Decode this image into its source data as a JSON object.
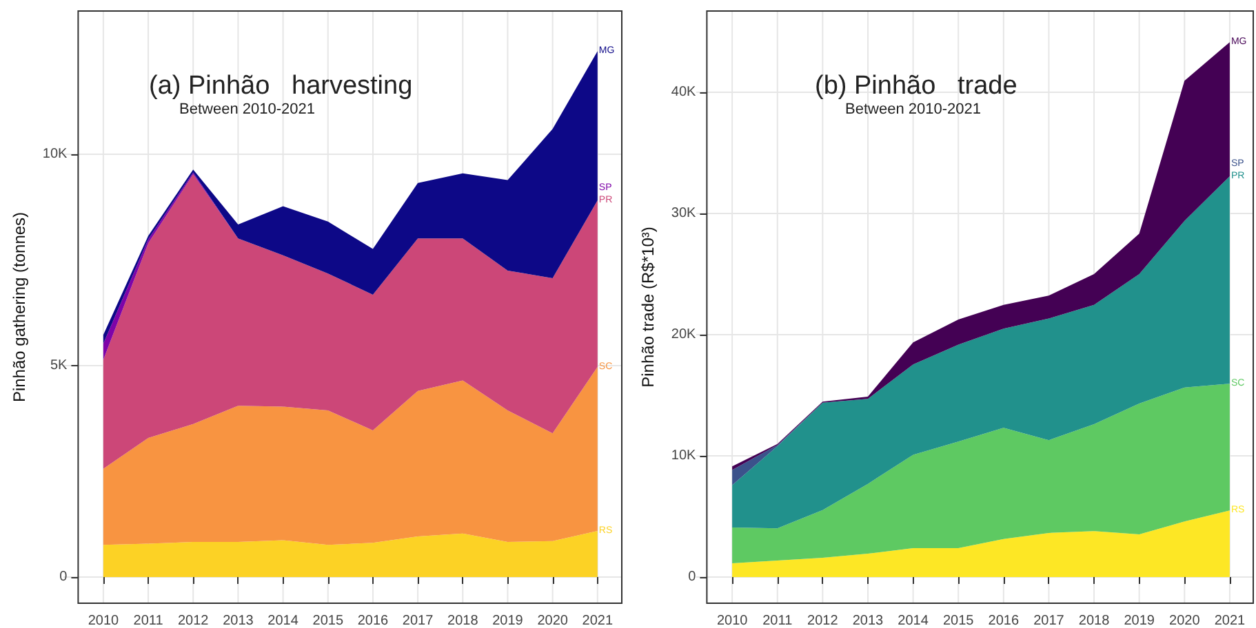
{
  "chart_data": [
    {
      "type": "area",
      "title": "(a) Pinhão   harvesting",
      "subtitle": "Between 2010-2021",
      "ylabel": "Pinhão gathering (tonnes)",
      "stacked": true,
      "grid": true,
      "x": [
        2010,
        2011,
        2012,
        2013,
        2014,
        2015,
        2016,
        2017,
        2018,
        2019,
        2020,
        2021
      ],
      "xlim": [
        2009.44,
        2021.54
      ],
      "xticks": [
        2010,
        2011,
        2012,
        2013,
        2014,
        2015,
        2016,
        2017,
        2018,
        2019,
        2020,
        2021
      ],
      "ylim": [
        -620,
        13390
      ],
      "yticks": [
        {
          "value": 0,
          "label": "0"
        },
        {
          "value": 5000,
          "label": "5K"
        },
        {
          "value": 10000,
          "label": "10K"
        }
      ],
      "series": [
        {
          "name": "RS",
          "color": "#fcd225",
          "values": [
            760,
            790,
            830,
            830,
            870,
            760,
            810,
            960,
            1030,
            830,
            850,
            1090
          ]
        },
        {
          "name": "SC",
          "color": "#f89441",
          "values": [
            1800,
            2500,
            2790,
            3220,
            3160,
            3180,
            2660,
            3440,
            3620,
            3110,
            2550,
            3880
          ]
        },
        {
          "name": "PR",
          "color": "#cc4778",
          "values": [
            2580,
            4610,
            5910,
            3960,
            3580,
            3240,
            3210,
            3610,
            3360,
            3310,
            3670,
            3940
          ]
        },
        {
          "name": "SP",
          "color": "#7e03a8",
          "values": [
            380,
            90,
            40,
            0,
            0,
            0,
            0,
            0,
            0,
            0,
            0,
            0
          ]
        },
        {
          "name": "MG",
          "color": "#0d0887",
          "values": [
            210,
            80,
            70,
            330,
            1160,
            1230,
            1080,
            1310,
            1540,
            2140,
            3530,
            3530
          ]
        }
      ]
    },
    {
      "type": "area",
      "title": "(b) Pinhão   trade",
      "subtitle": "Between 2010-2021",
      "ylabel": "Pinhão trade (R$*10³)",
      "stacked": true,
      "grid": true,
      "x": [
        2010,
        2011,
        2012,
        2013,
        2014,
        2015,
        2016,
        2017,
        2018,
        2019,
        2020,
        2021
      ],
      "xlim": [
        2009.44,
        2021.52
      ],
      "xticks": [
        2010,
        2011,
        2012,
        2013,
        2014,
        2015,
        2016,
        2017,
        2018,
        2019,
        2020,
        2021
      ],
      "ylim": [
        -2160,
        46700
      ],
      "yticks": [
        {
          "value": 0,
          "label": "0"
        },
        {
          "value": 10000,
          "label": "10K"
        },
        {
          "value": 20000,
          "label": "20K"
        },
        {
          "value": 30000,
          "label": "30K"
        },
        {
          "value": 40000,
          "label": "40K"
        }
      ],
      "series": [
        {
          "name": "RS",
          "color": "#fde725",
          "values": [
            1140,
            1360,
            1590,
            1930,
            2390,
            2390,
            3140,
            3640,
            3790,
            3520,
            4580,
            5490
          ]
        },
        {
          "name": "SC",
          "color": "#5ec962",
          "values": [
            2950,
            2660,
            3940,
            5760,
            7690,
            8780,
            9170,
            7650,
            8820,
            10800,
            11060,
            10460
          ]
        },
        {
          "name": "PR",
          "color": "#21918c",
          "values": [
            3490,
            6780,
            8860,
            7010,
            7460,
            8000,
            8180,
            10040,
            9850,
            10680,
            13750,
            17120
          ]
        },
        {
          "name": "SP",
          "color": "#3b528b",
          "values": [
            1250,
            100,
            0,
            0,
            0,
            0,
            0,
            0,
            0,
            0,
            0,
            0
          ]
        },
        {
          "name": "MG",
          "color": "#440154",
          "values": [
            300,
            80,
            80,
            190,
            1820,
            2080,
            1970,
            1890,
            2540,
            3330,
            11560,
            11060
          ]
        }
      ]
    }
  ]
}
